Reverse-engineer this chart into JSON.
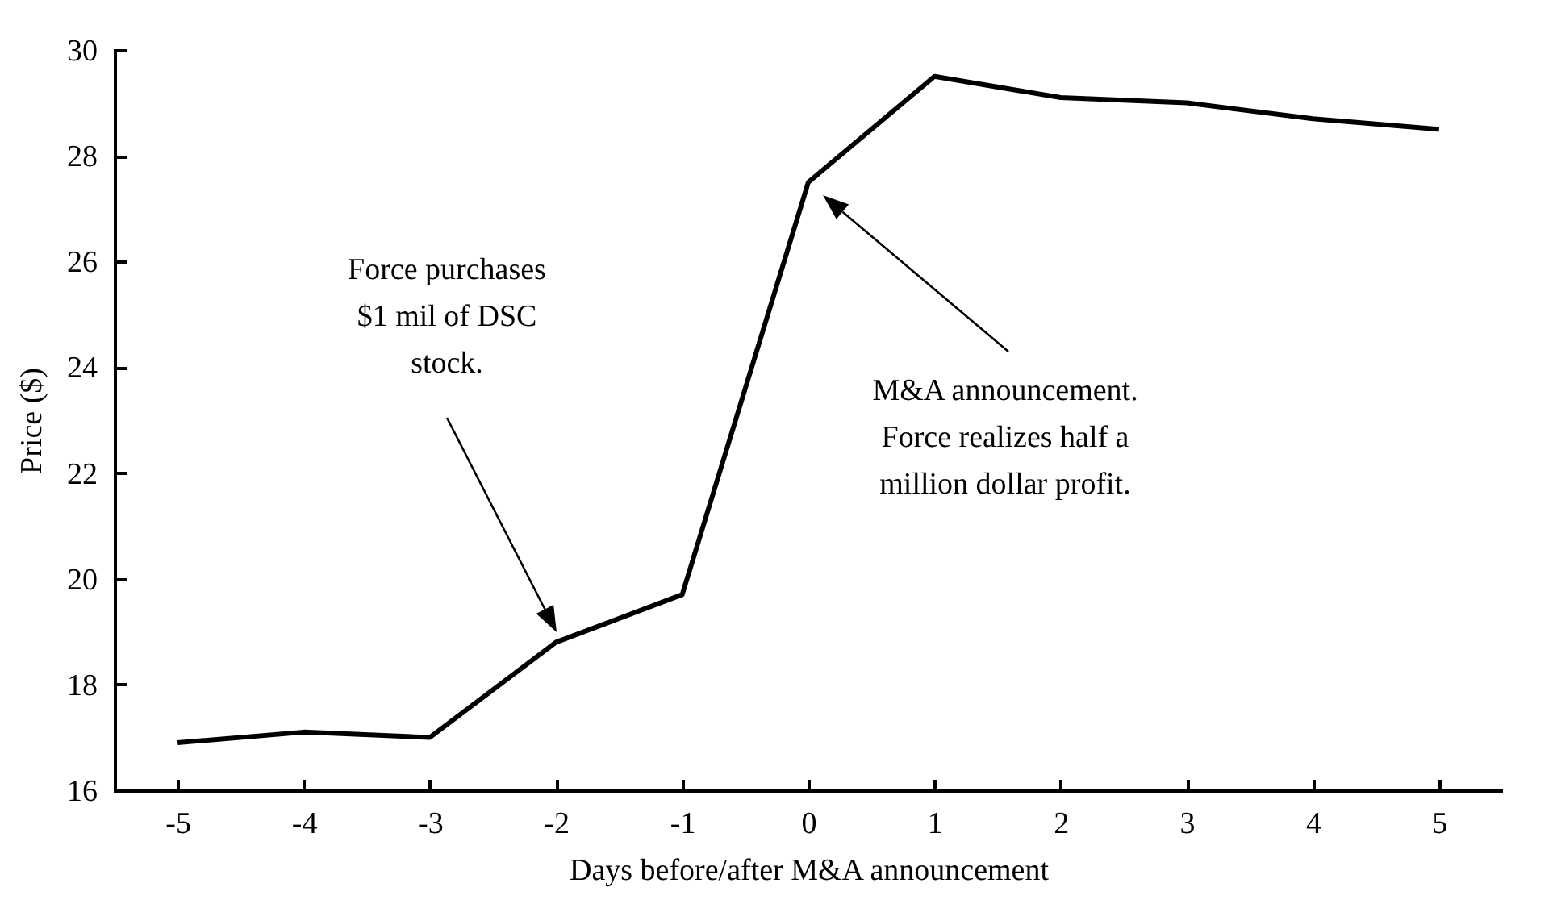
{
  "chart_data": {
    "type": "line",
    "xlabel": "Days before/after M&A announcement",
    "ylabel": "Price ($)",
    "x": [
      -5,
      -4,
      -3,
      -2,
      -1,
      0,
      1,
      2,
      3,
      4,
      5
    ],
    "series": [
      {
        "color": "#000000",
        "values": [
          16.9,
          17.1,
          17.0,
          18.8,
          19.7,
          27.5,
          29.5,
          29.1,
          29.0,
          28.7,
          28.5
        ]
      }
    ],
    "xlim": [
      -5.5,
      5.5
    ],
    "xticks": [
      -5,
      -4,
      -3,
      -2,
      -1,
      0,
      1,
      2,
      3,
      4,
      5
    ],
    "ylim": [
      16,
      30
    ],
    "yticks": [
      16,
      18,
      20,
      22,
      24,
      26,
      28,
      30
    ],
    "grid": false,
    "legend": false,
    "marker": "none",
    "line_style": "solid",
    "annotations": [
      "Force purchases\n$1 mil of DSC\nstock.",
      "M&A announcement.\nForce realizes half a\nmillion dollar profit."
    ]
  }
}
